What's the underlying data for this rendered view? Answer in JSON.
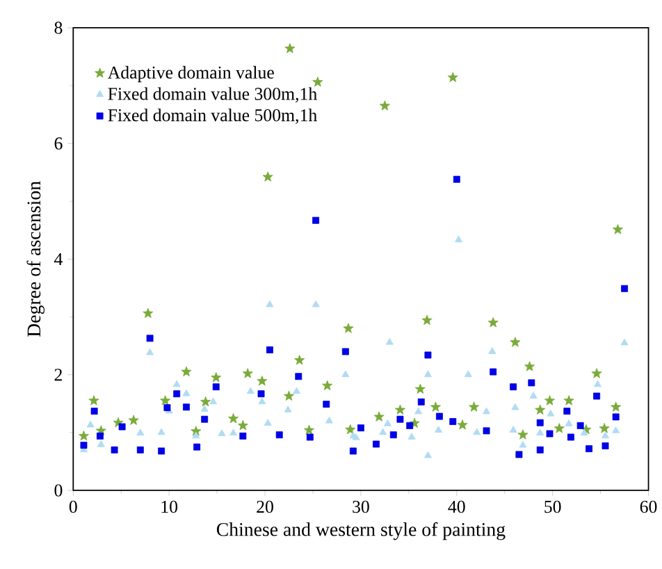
{
  "chart_data": {
    "type": "scatter",
    "xlabel": "Chinese and western style of painting",
    "ylabel": "Degree of ascension",
    "xlim": [
      0,
      60
    ],
    "xticks": [
      0,
      10,
      20,
      30,
      40,
      50,
      60
    ],
    "ylim": [
      0,
      8
    ],
    "yticks": [
      0,
      2,
      4,
      6,
      8
    ],
    "legend": "top left",
    "grid": false,
    "series": [
      {
        "name": "Adaptive domain value",
        "color": "#7aab3a",
        "marker": "star",
        "x": [
          1.1,
          2.15,
          2.9,
          4.7,
          6.3,
          7.8,
          9.6,
          11.8,
          12.8,
          13.8,
          14.9,
          16.7,
          17.7,
          18.2,
          19.7,
          20.3,
          22.5,
          22.6,
          23.6,
          24.6,
          25.5,
          26.5,
          28.7,
          28.9,
          31.9,
          32.5,
          34.1,
          35.6,
          36.2,
          36.9,
          37.8,
          39.6,
          40.6,
          41.8,
          43.8,
          46.1,
          46.9,
          47.6,
          48.7,
          49.7,
          50.7,
          51.7,
          53.5,
          54.6,
          55.4,
          56.6,
          56.8
        ],
        "values": [
          0.94,
          1.55,
          1.03,
          1.17,
          1.21,
          3.06,
          1.55,
          2.05,
          1.02,
          1.53,
          1.95,
          1.24,
          1.12,
          2.02,
          1.89,
          5.42,
          1.63,
          7.64,
          2.25,
          1.04,
          7.06,
          1.81,
          2.8,
          1.05,
          1.27,
          6.65,
          1.39,
          1.16,
          1.75,
          2.94,
          1.44,
          7.14,
          1.13,
          1.44,
          2.9,
          2.56,
          0.96,
          2.14,
          1.39,
          1.55,
          1.07,
          1.55,
          1.05,
          2.02,
          1.07,
          1.44,
          4.51
        ]
      },
      {
        "name": "Fixed domain value 300m,1h",
        "color": "#b0dcf2",
        "marker": "triangle",
        "x": [
          1.1,
          1.8,
          2.9,
          5.3,
          7.0,
          8.0,
          9.2,
          10.0,
          10.8,
          11.8,
          12.8,
          13.7,
          14.6,
          15.5,
          16.7,
          18.5,
          19.7,
          20.3,
          20.5,
          22.4,
          23.3,
          25.3,
          26.7,
          28.4,
          29.2,
          29.5,
          32.3,
          32.8,
          33.0,
          35.3,
          36.0,
          37.0,
          37.0,
          38.1,
          40.2,
          41.2,
          42.1,
          43.1,
          43.7,
          45.9,
          46.1,
          46.9,
          48.0,
          48.7,
          49.8,
          51.7,
          53.3,
          54.7,
          55.5,
          56.6,
          57.5
        ],
        "values": [
          0.7,
          1.13,
          0.79,
          null,
          0.99,
          2.38,
          1.0,
          1.37,
          1.83,
          1.67,
          0.94,
          1.4,
          1.53,
          0.98,
          0.99,
          1.71,
          1.53,
          1.16,
          3.21,
          1.39,
          1.71,
          3.21,
          1.2,
          2.0,
          0.94,
          0.91,
          1.0,
          1.15,
          2.56,
          0.92,
          1.36,
          2.0,
          0.6,
          1.04,
          4.33,
          2.0,
          1.0,
          1.36,
          2.4,
          1.04,
          1.43,
          0.78,
          1.63,
          0.99,
          1.32,
          1.15,
          0.99,
          1.83,
          0.94,
          1.03,
          2.55
        ]
      },
      {
        "name": "Fixed domain value 500m,1h",
        "color": "#0000e6",
        "marker": "square",
        "x": [
          1.1,
          2.2,
          2.8,
          4.3,
          5.1,
          7.0,
          8.0,
          9.2,
          9.8,
          10.8,
          11.8,
          12.9,
          13.7,
          14.9,
          17.7,
          19.6,
          20.5,
          21.5,
          23.5,
          24.7,
          25.3,
          26.4,
          28.4,
          29.2,
          30.0,
          31.6,
          33.4,
          34.1,
          35.1,
          36.3,
          37.0,
          38.2,
          39.6,
          40.0,
          43.1,
          43.8,
          45.9,
          46.5,
          47.8,
          48.7,
          48.7,
          49.7,
          51.5,
          51.9,
          52.9,
          53.8,
          54.6,
          55.5,
          56.6,
          57.5
        ],
        "values": [
          0.78,
          1.37,
          0.94,
          0.7,
          1.1,
          0.7,
          2.63,
          0.68,
          1.43,
          1.67,
          1.44,
          0.75,
          1.23,
          1.79,
          0.94,
          1.67,
          2.43,
          0.96,
          1.97,
          0.92,
          4.67,
          1.49,
          2.4,
          0.68,
          1.08,
          0.8,
          0.96,
          1.23,
          1.12,
          1.53,
          2.34,
          1.28,
          1.19,
          5.38,
          1.03,
          2.05,
          1.79,
          0.62,
          1.86,
          1.17,
          0.7,
          0.98,
          1.37,
          0.92,
          1.12,
          0.72,
          1.63,
          0.77,
          1.27,
          3.49
        ]
      }
    ]
  }
}
